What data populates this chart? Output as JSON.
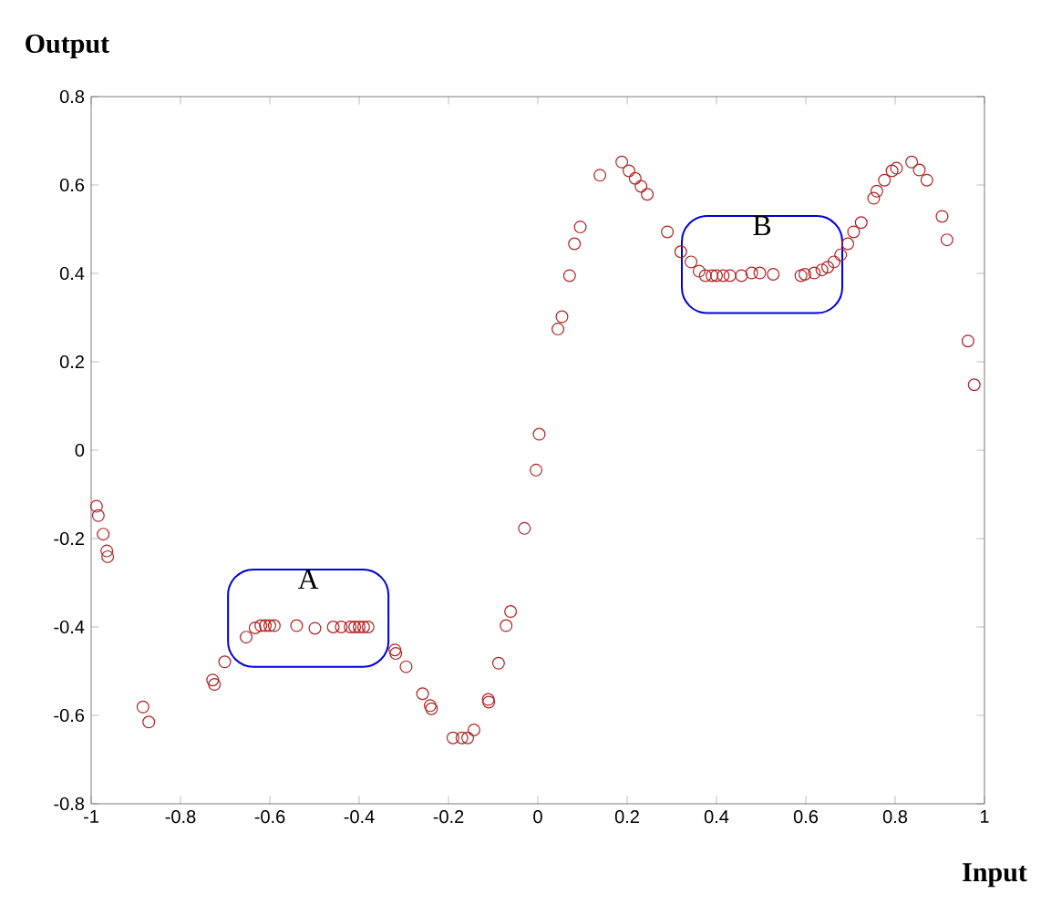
{
  "chart_data": {
    "type": "scatter",
    "xlabel": "Input",
    "ylabel": "Output",
    "xlim": [
      -1,
      1
    ],
    "ylim": [
      -0.8,
      0.8
    ],
    "xticks": [
      -1,
      -0.8,
      -0.6,
      -0.4,
      -0.2,
      0,
      0.2,
      0.4,
      0.6,
      0.8,
      1
    ],
    "yticks": [
      -0.8,
      -0.6,
      -0.4,
      -0.2,
      0,
      0.2,
      0.4,
      0.6,
      0.8
    ],
    "marker": "circle",
    "annotations": [
      {
        "text": "A",
        "x": -0.514,
        "y": -0.38
      },
      {
        "text": "B",
        "x": 0.502,
        "y": 0.42
      }
    ],
    "series": [
      {
        "color": "#b22222",
        "x": [
          -0.988,
          -0.984,
          -0.973,
          -0.965,
          -0.963,
          -0.884,
          -0.871,
          -0.728,
          -0.724,
          -0.701,
          -0.653,
          -0.633,
          -0.62,
          -0.61,
          -0.6,
          -0.59,
          -0.54,
          -0.499,
          -0.458,
          -0.44,
          -0.42,
          -0.41,
          -0.4,
          -0.39,
          -0.38,
          -0.32,
          -0.318,
          -0.295,
          -0.258,
          -0.241,
          -0.238,
          -0.19,
          -0.17,
          -0.157,
          -0.143,
          -0.111,
          -0.11,
          -0.088,
          -0.071,
          -0.061,
          -0.03,
          -0.004,
          0.003,
          0.045,
          0.054,
          0.071,
          0.082,
          0.095,
          0.139,
          0.188,
          0.204,
          0.218,
          0.231,
          0.245,
          0.29,
          0.32,
          0.343,
          0.361,
          0.375,
          0.39,
          0.4,
          0.415,
          0.43,
          0.456,
          0.479,
          0.497,
          0.527,
          0.589,
          0.598,
          0.619,
          0.636,
          0.649,
          0.663,
          0.678,
          0.694,
          0.707,
          0.724,
          0.752,
          0.759,
          0.776,
          0.793,
          0.803,
          0.837,
          0.854,
          0.871,
          0.905,
          0.916,
          0.963,
          0.977
        ],
        "values": [
          -0.127,
          -0.148,
          -0.19,
          -0.228,
          -0.241,
          -0.581,
          -0.615,
          -0.52,
          -0.53,
          -0.479,
          -0.423,
          -0.402,
          -0.397,
          -0.397,
          -0.397,
          -0.397,
          -0.397,
          -0.403,
          -0.4,
          -0.4,
          -0.4,
          -0.4,
          -0.4,
          -0.4,
          -0.4,
          -0.452,
          -0.46,
          -0.49,
          -0.551,
          -0.578,
          -0.585,
          -0.651,
          -0.651,
          -0.651,
          -0.633,
          -0.564,
          -0.57,
          -0.482,
          -0.397,
          -0.365,
          -0.177,
          -0.045,
          0.036,
          0.274,
          0.302,
          0.395,
          0.467,
          0.505,
          0.622,
          0.652,
          0.632,
          0.615,
          0.597,
          0.579,
          0.494,
          0.449,
          0.426,
          0.405,
          0.395,
          0.395,
          0.395,
          0.395,
          0.395,
          0.395,
          0.401,
          0.401,
          0.398,
          0.395,
          0.398,
          0.401,
          0.408,
          0.414,
          0.426,
          0.442,
          0.467,
          0.494,
          0.515,
          0.57,
          0.586,
          0.611,
          0.632,
          0.638,
          0.652,
          0.634,
          0.611,
          0.529,
          0.476,
          0.247,
          0.148
        ]
      }
    ]
  }
}
